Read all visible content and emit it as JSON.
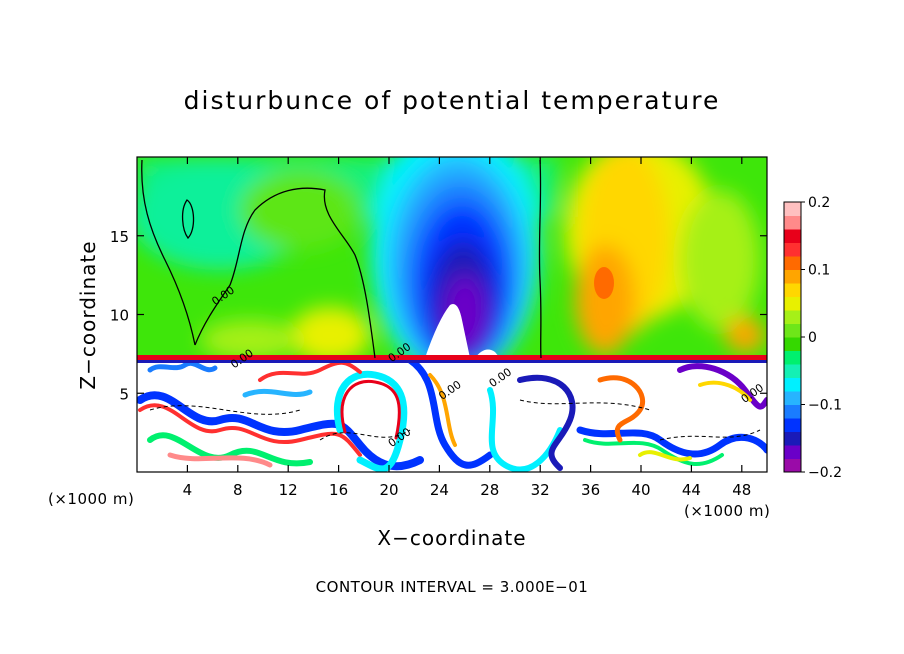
{
  "chart_data": {
    "type": "heatmap",
    "title": "disturbunce of potential temperature",
    "xlabel": "X−coordinate",
    "ylabel": "Z−coordinate",
    "x_unit_left": "(×1000 m)",
    "x_unit_right": "(×1000 m)",
    "xlim": [
      0,
      50
    ],
    "ylim": [
      0,
      20
    ],
    "x_ticks": [
      4,
      8,
      12,
      16,
      20,
      24,
      28,
      32,
      36,
      40,
      44,
      48
    ],
    "x_tick_labels": [
      "4",
      "8",
      "12",
      "16",
      "20",
      "24",
      "28",
      "32",
      "36",
      "40",
      "44",
      "48"
    ],
    "y_ticks": [
      5,
      10,
      15
    ],
    "y_tick_labels": [
      "5",
      "10",
      "15"
    ],
    "colorbar": {
      "range": [
        -0.2,
        0.2
      ],
      "ticks": [
        0.2,
        0.1,
        0,
        -0.1,
        -0.2
      ],
      "tick_labels": [
        "0.2",
        "0.1",
        "0",
        "−0.1",
        "−0.2"
      ],
      "colors": [
        "#9a0ba8",
        "#6a00c8",
        "#1a1ab8",
        "#0033ff",
        "#1a7cff",
        "#27b4ff",
        "#00f0ff",
        "#14f0b4",
        "#00f06e",
        "#35d800",
        "#6ee619",
        "#a6f018",
        "#e8f000",
        "#ffd700",
        "#ffa500",
        "#ff6a00",
        "#ff3030",
        "#e8001a",
        "#ff8a8a",
        "#ffc0c0"
      ]
    },
    "contour_labels": [
      "0.00",
      "0.00",
      "0.00",
      "0.00",
      "0.00",
      "0.00",
      "0.00"
    ],
    "footer": "CONTOUR INTERVAL = 3.000E−01"
  }
}
